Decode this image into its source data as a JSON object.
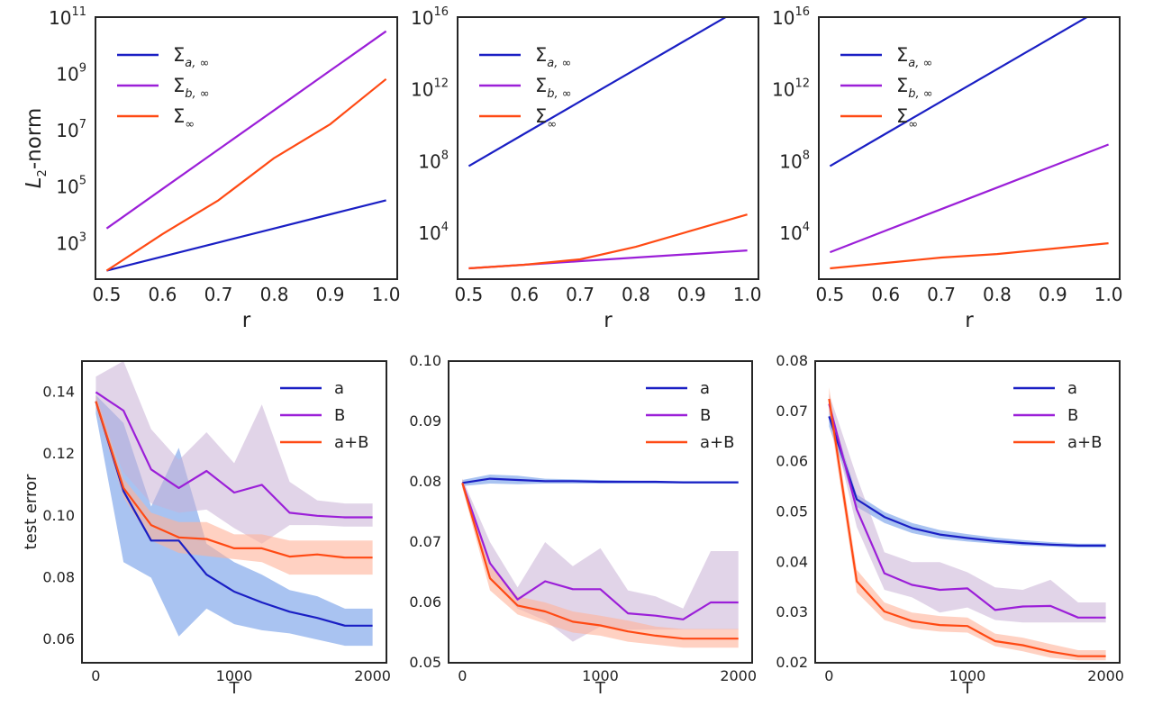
{
  "colors": {
    "a": "#1a1fc4",
    "b": "#9b1fd8",
    "inf": "#ff4a14",
    "a_band": "#6f9be8",
    "b_band": "#c9b0d6",
    "inf_band": "#ffb399"
  },
  "chart_data": [
    {
      "type": "line",
      "yscale": "log",
      "xlabel": "r",
      "ylabel": "L2-norm",
      "x": [
        0.5,
        0.6,
        0.7,
        0.8,
        0.9,
        1.0
      ],
      "xlim": [
        0.48,
        1.02
      ],
      "ylim": [
        50,
        100000000000
      ],
      "xticks": [
        "0.5",
        "0.6",
        "0.7",
        "0.8",
        "0.9",
        "1.0"
      ],
      "yticks": [
        {
          "value": 1000,
          "base": "10",
          "exp": "3"
        },
        {
          "value": 100000,
          "base": "10",
          "exp": "5"
        },
        {
          "value": 10000000,
          "base": "10",
          "exp": "7"
        },
        {
          "value": 1000000000,
          "base": "10",
          "exp": "9"
        },
        {
          "value": 100000000000,
          "base": "10",
          "exp": "11"
        }
      ],
      "legend_position": "top-left",
      "series": [
        {
          "key": "a",
          "sym": "Σ",
          "sub": "a, ∞",
          "values": [
            100,
            316,
            1000,
            3162,
            10000,
            31623
          ]
        },
        {
          "key": "b",
          "sym": "Σ",
          "sub": "b, ∞",
          "values": [
            3162,
            79433,
            2000000,
            50100000,
            1260000000,
            31600000000
          ]
        },
        {
          "key": "inf",
          "sym": "Σ",
          "sub": "∞",
          "values": [
            100,
            2000,
            31623,
            1000000,
            15800000,
            631000000
          ]
        }
      ]
    },
    {
      "type": "line",
      "yscale": "log",
      "xlabel": "r",
      "ylabel": "",
      "x": [
        0.5,
        0.6,
        0.7,
        0.8,
        0.9,
        1.0
      ],
      "xlim": [
        0.48,
        1.02
      ],
      "ylim": [
        25,
        10000000000000000
      ],
      "xticks": [
        "0.5",
        "0.6",
        "0.7",
        "0.8",
        "0.9",
        "1.0"
      ],
      "yticks": [
        {
          "value": 10000,
          "base": "10",
          "exp": "4"
        },
        {
          "value": 100000000,
          "base": "10",
          "exp": "8"
        },
        {
          "value": 1000000000000,
          "base": "10",
          "exp": "12"
        },
        {
          "value": 10000000000000000,
          "base": "10",
          "exp": "16"
        }
      ],
      "legend_position": "top-left",
      "series": [
        {
          "key": "a",
          "sym": "Σ",
          "sub": "a, ∞",
          "values": [
            50100000,
            3160000000,
            200000000000,
            12600000000000,
            794000000000000,
            50100000000000000
          ]
        },
        {
          "key": "b",
          "sym": "Σ",
          "sub": "b, ∞",
          "values": [
            100,
            159,
            251,
            398,
            631,
            1000
          ]
        },
        {
          "key": "inf",
          "sym": "Σ",
          "sub": "∞",
          "values": [
            100,
            159,
            316,
            1585,
            12600,
            100000
          ]
        }
      ]
    },
    {
      "type": "line",
      "yscale": "log",
      "xlabel": "r",
      "ylabel": "",
      "x": [
        0.5,
        0.6,
        0.7,
        0.8,
        0.9,
        1.0
      ],
      "xlim": [
        0.48,
        1.02
      ],
      "ylim": [
        25,
        10000000000000000
      ],
      "xticks": [
        "0.5",
        "0.6",
        "0.7",
        "0.8",
        "0.9",
        "1.0"
      ],
      "yticks": [
        {
          "value": 10000,
          "base": "10",
          "exp": "4"
        },
        {
          "value": 100000000,
          "base": "10",
          "exp": "8"
        },
        {
          "value": 1000000000000,
          "base": "10",
          "exp": "12"
        },
        {
          "value": 10000000000000000,
          "base": "10",
          "exp": "16"
        }
      ],
      "legend_position": "top-left",
      "series": [
        {
          "key": "a",
          "sym": "Σ",
          "sub": "a, ∞",
          "values": [
            50100000,
            3160000000,
            200000000000,
            12600000000000,
            794000000000000,
            50100000000000000
          ]
        },
        {
          "key": "b",
          "sym": "Σ",
          "sub": "b, ∞",
          "values": [
            794,
            12600,
            200000,
            3160000,
            50100000,
            794000000
          ]
        },
        {
          "key": "inf",
          "sym": "Σ",
          "sub": "∞",
          "values": [
            100,
            200,
            398,
            631,
            1259,
            2512
          ]
        }
      ]
    },
    {
      "type": "line",
      "xlabel": "T",
      "ylabel": "test error",
      "x": [
        0,
        200,
        400,
        600,
        800,
        1000,
        1200,
        1400,
        1600,
        1800,
        2000
      ],
      "xlim": [
        -100,
        2100
      ],
      "ylim": [
        0.0525,
        0.15
      ],
      "xticks": [
        {
          "value": 0,
          "label": "0"
        },
        {
          "value": 1000,
          "label": "1000"
        },
        {
          "value": 2000,
          "label": "2000"
        }
      ],
      "yticks": [
        {
          "value": 0.06,
          "label": "0.06"
        },
        {
          "value": 0.08,
          "label": "0.08"
        },
        {
          "value": 0.1,
          "label": "0.10"
        },
        {
          "value": 0.12,
          "label": "0.12"
        },
        {
          "value": 0.14,
          "label": "0.14"
        }
      ],
      "legend_position": "top-right",
      "series": [
        {
          "key": "a",
          "name": "a",
          "values": [
            0.137,
            0.108,
            0.092,
            0.092,
            0.081,
            0.0755,
            0.072,
            0.069,
            0.067,
            0.0645,
            0.0645
          ],
          "lower": [
            0.133,
            0.085,
            0.08,
            0.061,
            0.07,
            0.065,
            0.063,
            0.062,
            0.06,
            0.058,
            0.058
          ],
          "upper": [
            0.139,
            0.13,
            0.103,
            0.122,
            0.091,
            0.085,
            0.081,
            0.076,
            0.074,
            0.07,
            0.07
          ]
        },
        {
          "key": "b",
          "name": "B",
          "values": [
            0.14,
            0.134,
            0.115,
            0.109,
            0.1145,
            0.1075,
            0.11,
            0.101,
            0.1,
            0.0995,
            0.0995
          ],
          "lower": [
            0.137,
            0.114,
            0.104,
            0.101,
            0.102,
            0.096,
            0.091,
            0.097,
            0.097,
            0.0965,
            0.0965
          ],
          "upper": [
            0.145,
            0.15,
            0.128,
            0.118,
            0.127,
            0.117,
            0.136,
            0.111,
            0.105,
            0.104,
            0.104
          ]
        },
        {
          "key": "inf",
          "name": "a+B",
          "values": [
            0.137,
            0.109,
            0.097,
            0.093,
            0.0925,
            0.0895,
            0.0895,
            0.0868,
            0.0875,
            0.0865,
            0.0865
          ],
          "lower": [
            0.135,
            0.106,
            0.092,
            0.088,
            0.087,
            0.086,
            0.085,
            0.081,
            0.081,
            0.081,
            0.081
          ],
          "upper": [
            0.139,
            0.112,
            0.101,
            0.098,
            0.098,
            0.094,
            0.094,
            0.092,
            0.092,
            0.092,
            0.092
          ]
        }
      ]
    },
    {
      "type": "line",
      "xlabel": "T",
      "ylabel": "",
      "x": [
        0,
        200,
        400,
        600,
        800,
        1000,
        1200,
        1400,
        1600,
        1800,
        2000
      ],
      "xlim": [
        -100,
        2100
      ],
      "ylim": [
        0.05,
        0.1
      ],
      "xticks": [
        {
          "value": 0,
          "label": "0"
        },
        {
          "value": 1000,
          "label": "1000"
        },
        {
          "value": 2000,
          "label": "2000"
        }
      ],
      "yticks": [
        {
          "value": 0.05,
          "label": "0.05"
        },
        {
          "value": 0.06,
          "label": "0.06"
        },
        {
          "value": 0.07,
          "label": "0.07"
        },
        {
          "value": 0.08,
          "label": "0.08"
        },
        {
          "value": 0.09,
          "label": "0.09"
        },
        {
          "value": 0.1,
          "label": "0.10"
        }
      ],
      "legend_position": "top-right",
      "series": [
        {
          "key": "a",
          "name": "a",
          "values": [
            0.0798,
            0.0805,
            0.0803,
            0.0801,
            0.0801,
            0.08,
            0.08,
            0.08,
            0.0799,
            0.0799,
            0.0799
          ],
          "lower": [
            0.0793,
            0.0797,
            0.0796,
            0.0797,
            0.0797,
            0.0797,
            0.0797,
            0.0797,
            0.0797,
            0.0797,
            0.0797
          ],
          "upper": [
            0.0803,
            0.0812,
            0.081,
            0.0805,
            0.0804,
            0.0803,
            0.0802,
            0.0801,
            0.0801,
            0.0801,
            0.0801
          ]
        },
        {
          "key": "b",
          "name": "B",
          "values": [
            0.0798,
            0.0665,
            0.0605,
            0.0635,
            0.0622,
            0.0622,
            0.0582,
            0.0578,
            0.0572,
            0.06,
            0.06
          ],
          "lower": [
            0.079,
            0.064,
            0.059,
            0.057,
            0.0535,
            0.056,
            0.0555,
            0.0555,
            0.0555,
            0.0555,
            0.0555
          ],
          "upper": [
            0.0805,
            0.07,
            0.0625,
            0.07,
            0.066,
            0.069,
            0.062,
            0.061,
            0.059,
            0.0685,
            0.0685
          ]
        },
        {
          "key": "inf",
          "name": "a+B",
          "values": [
            0.0798,
            0.064,
            0.0595,
            0.0585,
            0.0568,
            0.0562,
            0.0552,
            0.0545,
            0.054,
            0.054,
            0.054
          ],
          "lower": [
            0.079,
            0.062,
            0.058,
            0.0565,
            0.055,
            0.0545,
            0.0535,
            0.053,
            0.0525,
            0.0525,
            0.0525
          ],
          "upper": [
            0.0805,
            0.066,
            0.061,
            0.06,
            0.0585,
            0.0578,
            0.057,
            0.056,
            0.0556,
            0.0556,
            0.0556
          ]
        }
      ]
    },
    {
      "type": "line",
      "xlabel": "T",
      "ylabel": "",
      "x": [
        0,
        200,
        400,
        600,
        800,
        1000,
        1200,
        1400,
        1600,
        1800,
        2000
      ],
      "xlim": [
        -100,
        2100
      ],
      "ylim": [
        0.02,
        0.08
      ],
      "xticks": [
        {
          "value": 0,
          "label": "0"
        },
        {
          "value": 1000,
          "label": "1000"
        },
        {
          "value": 2000,
          "label": "2000"
        }
      ],
      "yticks": [
        {
          "value": 0.02,
          "label": "0.02"
        },
        {
          "value": 0.03,
          "label": "0.03"
        },
        {
          "value": 0.04,
          "label": "0.04"
        },
        {
          "value": 0.05,
          "label": "0.05"
        },
        {
          "value": 0.06,
          "label": "0.06"
        },
        {
          "value": 0.07,
          "label": "0.07"
        },
        {
          "value": 0.08,
          "label": "0.08"
        }
      ],
      "legend_position": "top-right",
      "series": [
        {
          "key": "a",
          "name": "a",
          "values": [
            0.069,
            0.0525,
            0.049,
            0.0468,
            0.0455,
            0.0448,
            0.0442,
            0.0438,
            0.0435,
            0.0433,
            0.0433
          ],
          "lower": [
            0.067,
            0.051,
            0.0478,
            0.0458,
            0.0447,
            0.0441,
            0.0437,
            0.0433,
            0.0431,
            0.0429,
            0.0429
          ],
          "upper": [
            0.071,
            0.0535,
            0.05,
            0.0478,
            0.0464,
            0.0456,
            0.0449,
            0.0444,
            0.044,
            0.0437,
            0.0437
          ]
        },
        {
          "key": "b",
          "name": "B",
          "values": [
            0.0715,
            0.0505,
            0.0378,
            0.0355,
            0.0345,
            0.0348,
            0.0305,
            0.0312,
            0.0313,
            0.029,
            0.029
          ],
          "lower": [
            0.07,
            0.047,
            0.0345,
            0.033,
            0.03,
            0.031,
            0.0285,
            0.028,
            0.028,
            0.028,
            0.028
          ],
          "upper": [
            0.0735,
            0.057,
            0.042,
            0.04,
            0.04,
            0.038,
            0.035,
            0.0345,
            0.0365,
            0.032,
            0.032
          ]
        },
        {
          "key": "inf",
          "name": "a+B",
          "values": [
            0.0725,
            0.0362,
            0.0302,
            0.0283,
            0.0275,
            0.0273,
            0.0243,
            0.0235,
            0.0222,
            0.0213,
            0.0213
          ],
          "lower": [
            0.07,
            0.034,
            0.0285,
            0.0268,
            0.0262,
            0.026,
            0.0233,
            0.0223,
            0.021,
            0.0205,
            0.0205
          ],
          "upper": [
            0.0748,
            0.0385,
            0.032,
            0.03,
            0.0293,
            0.029,
            0.0258,
            0.025,
            0.0237,
            0.0225,
            0.0225
          ]
        }
      ]
    }
  ]
}
